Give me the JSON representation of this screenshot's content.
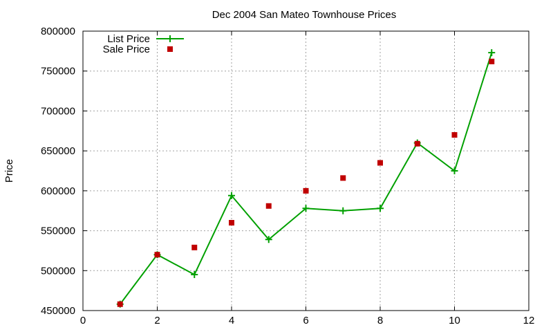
{
  "chart_data": {
    "type": "line",
    "title": "Dec 2004 San Mateo Townhouse Prices",
    "xlabel": "",
    "ylabel": "Price",
    "xlim": [
      0,
      12
    ],
    "ylim": [
      450000,
      800000
    ],
    "xticks": [
      0,
      2,
      4,
      6,
      8,
      10,
      12
    ],
    "xtick_labels": [
      "0",
      "2",
      "4",
      "6",
      "8",
      "10",
      "12"
    ],
    "yticks": [
      450000,
      500000,
      550000,
      600000,
      650000,
      700000,
      750000,
      800000
    ],
    "ytick_labels": [
      "450000",
      "500000",
      "550000",
      "600000",
      "650000",
      "700000",
      "750000",
      "800000"
    ],
    "grid": true,
    "legend_position": "top-left",
    "series": [
      {
        "name": "List Price",
        "style": "line-with-plus-markers",
        "color": "#00a000",
        "x": [
          1,
          2,
          3,
          4,
          5,
          6,
          7,
          8,
          9,
          10,
          11
        ],
        "values": [
          458000,
          520000,
          495000,
          594000,
          539000,
          578000,
          575000,
          578000,
          660000,
          625000,
          773000
        ]
      },
      {
        "name": "Sale Price",
        "style": "square-markers",
        "color": "#c00000",
        "x": [
          1,
          2,
          3,
          4,
          5,
          6,
          7,
          8,
          9,
          10,
          11
        ],
        "values": [
          458000,
          520000,
          529000,
          560000,
          581000,
          600000,
          616000,
          635000,
          659000,
          670000,
          762000
        ]
      }
    ]
  }
}
